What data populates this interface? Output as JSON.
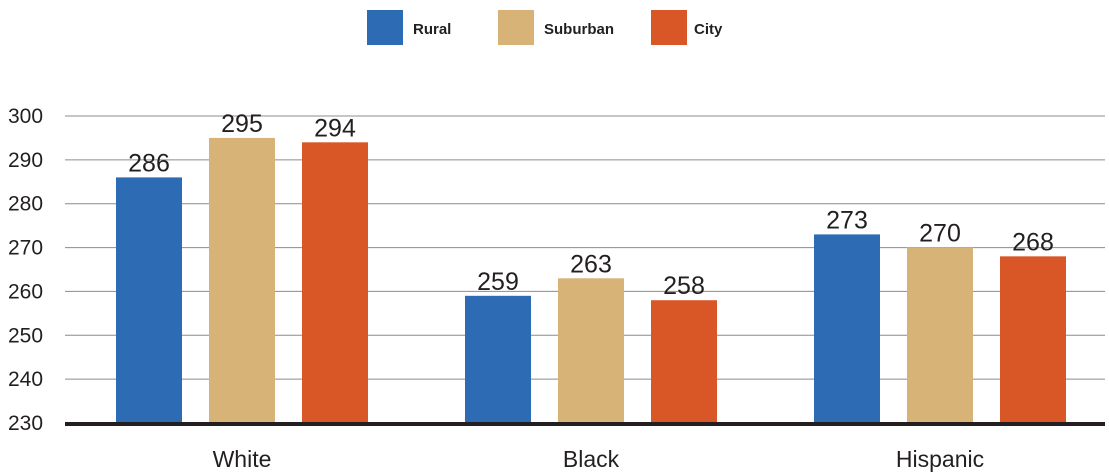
{
  "chart_data": {
    "type": "bar",
    "categories": [
      "White",
      "Black",
      "Hispanic"
    ],
    "series": [
      {
        "name": "Rural",
        "color": "#2e6bb5",
        "values": [
          286,
          259,
          273
        ]
      },
      {
        "name": "Suburban",
        "color": "#d8b377",
        "values": [
          295,
          263,
          270
        ]
      },
      {
        "name": "City",
        "color": "#d95627",
        "values": [
          294,
          258,
          268
        ]
      }
    ],
    "ylim": [
      230,
      300
    ],
    "yticks": [
      300,
      290,
      280,
      270,
      260,
      250,
      240,
      230
    ],
    "grid": true,
    "legend_position": "top-center",
    "data_labels": true
  }
}
